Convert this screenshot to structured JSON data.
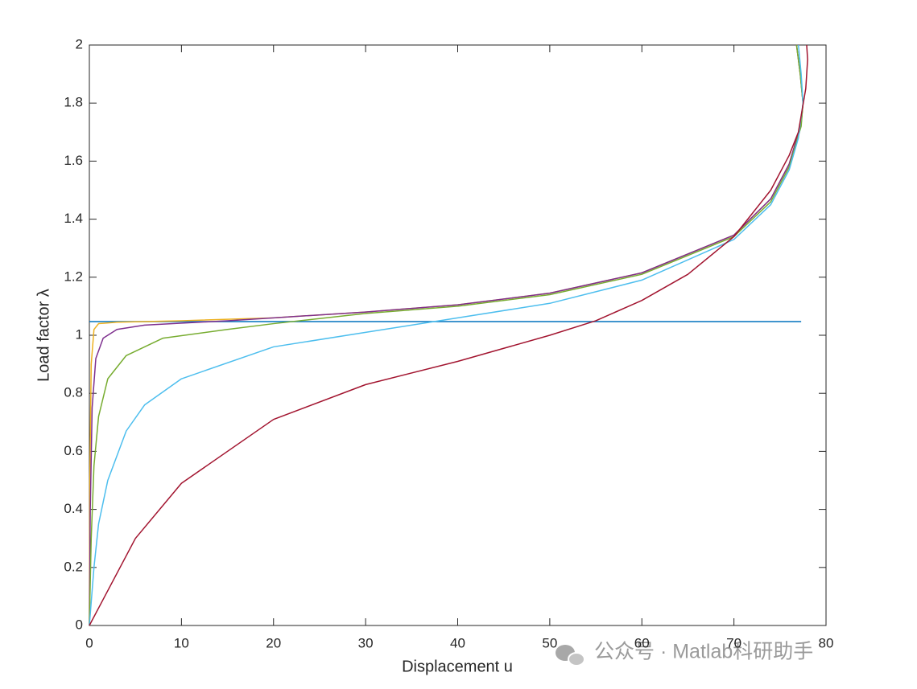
{
  "chart_data": {
    "type": "line",
    "xlabel": "Displacement u",
    "ylabel": "Load factor λ",
    "xlim": [
      0,
      80
    ],
    "ylim": [
      0,
      2
    ],
    "xticks": [
      0,
      10,
      20,
      30,
      40,
      50,
      60,
      70,
      80
    ],
    "yticks": [
      0,
      0.2,
      0.4,
      0.6,
      0.8,
      1,
      1.2,
      1.4,
      1.6,
      1.8,
      2
    ],
    "grid": false,
    "series": [
      {
        "color": "#0072BD",
        "x": [
          0,
          77.3
        ],
        "values": [
          1.047,
          1.047
        ]
      },
      {
        "color": "#EDB120",
        "x": [
          0,
          0.05,
          0.2,
          0.5,
          1,
          3,
          10,
          20,
          30,
          40,
          50,
          60,
          70,
          74,
          76,
          77.3,
          77.5,
          77.2,
          76.8
        ],
        "values": [
          0,
          0.5,
          0.9,
          1.02,
          1.04,
          1.045,
          1.05,
          1.06,
          1.08,
          1.105,
          1.145,
          1.215,
          1.345,
          1.47,
          1.59,
          1.73,
          1.8,
          1.9,
          2
        ]
      },
      {
        "color": "#7E2F8E",
        "x": [
          0,
          0.1,
          0.3,
          0.7,
          1.5,
          3,
          6,
          15,
          20,
          30,
          40,
          50,
          60,
          70,
          74,
          76,
          77.3,
          77.5,
          77.2,
          76.8
        ],
        "values": [
          0,
          0.4,
          0.75,
          0.92,
          0.99,
          1.02,
          1.035,
          1.05,
          1.06,
          1.08,
          1.105,
          1.145,
          1.215,
          1.345,
          1.47,
          1.59,
          1.73,
          1.8,
          1.9,
          2
        ]
      },
      {
        "color": "#77AC30",
        "x": [
          0,
          0.2,
          0.5,
          1,
          2,
          4,
          8,
          15,
          20,
          30,
          40,
          50,
          60,
          70,
          74,
          76,
          77.3,
          77.5,
          77.2,
          76.8
        ],
        "values": [
          0,
          0.3,
          0.55,
          0.72,
          0.85,
          0.93,
          0.99,
          1.02,
          1.04,
          1.075,
          1.1,
          1.14,
          1.21,
          1.34,
          1.46,
          1.58,
          1.72,
          1.8,
          1.9,
          2
        ]
      },
      {
        "color": "#4DBEEE",
        "x": [
          0,
          0.5,
          1,
          2,
          4,
          6,
          10,
          20,
          30,
          40,
          50,
          60,
          70,
          74,
          76,
          77,
          77.5,
          77.3,
          77
        ],
        "values": [
          0,
          0.2,
          0.35,
          0.5,
          0.67,
          0.76,
          0.85,
          0.96,
          1.01,
          1.06,
          1.11,
          1.19,
          1.33,
          1.45,
          1.57,
          1.68,
          1.8,
          1.9,
          2
        ]
      },
      {
        "color": "#A2142F",
        "x": [
          0,
          5,
          10,
          20,
          30,
          40,
          50,
          55,
          60,
          65,
          70,
          74,
          76,
          77,
          77.8,
          78,
          77.9
        ],
        "values": [
          0,
          0.3,
          0.49,
          0.71,
          0.83,
          0.91,
          1,
          1.05,
          1.12,
          1.21,
          1.34,
          1.5,
          1.62,
          1.7,
          1.85,
          1.95,
          2
        ]
      }
    ]
  },
  "watermark": "公众号 · Matlab科研助手"
}
